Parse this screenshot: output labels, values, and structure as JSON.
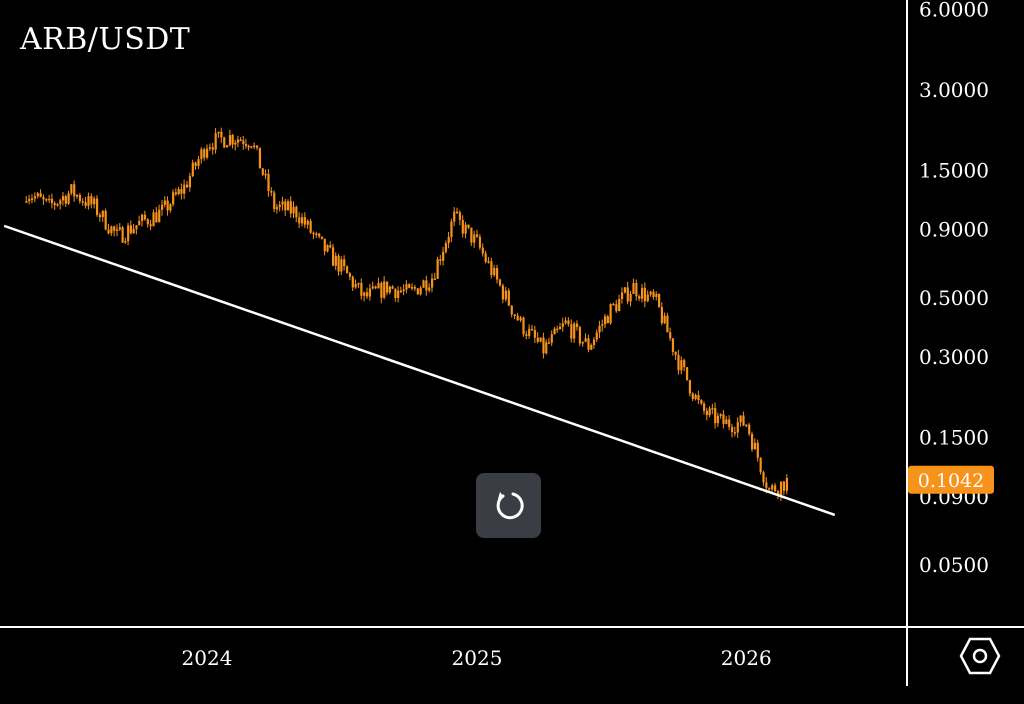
{
  "header": {
    "pair": "ARB/USDT"
  },
  "price_tag": {
    "value": "0.1042",
    "color": "#f7931a"
  },
  "controls": {
    "reset_icon": "reset-icon",
    "settings_icon": "settings-hexagon-icon"
  },
  "colors": {
    "candle": "#f7931a",
    "background": "#000000",
    "trendline": "#ffffff",
    "axis_text": "#ffffff"
  },
  "chart_data": {
    "type": "line",
    "title": "ARB/USDT",
    "y_scale": "log",
    "y_ticks": [
      "6.0000",
      "3.0000",
      "1.5000",
      "0.9000",
      "0.5000",
      "0.3000",
      "0.1500",
      "0.0900",
      "0.0500"
    ],
    "x_ticks": [
      "2024",
      "2025",
      "2026"
    ],
    "grid": false,
    "series": [
      {
        "x": [
          "2023-05-01",
          "2023-06-01",
          "2023-07-01",
          "2023-08-01",
          "2023-09-01",
          "2023-10-01",
          "2023-11-01",
          "2023-12-01",
          "2024-01-01",
          "2024-02-01",
          "2024-03-01",
          "2024-04-01",
          "2024-05-01",
          "2024-06-01",
          "2024-07-01",
          "2024-08-01",
          "2024-09-01",
          "2024-10-01",
          "2024-11-01",
          "2024-12-01",
          "2025-01-01",
          "2025-02-01",
          "2025-03-01",
          "2025-04-01",
          "2025-05-01",
          "2025-06-01",
          "2025-07-01",
          "2025-08-01",
          "2025-09-01",
          "2025-10-01",
          "2025-11-01",
          "2025-12-01",
          "2026-01-01",
          "2026-02-01",
          "2026-03-01"
        ],
        "y": [
          1.25,
          1.1,
          1.25,
          1.1,
          0.85,
          0.95,
          1.05,
          1.3,
          1.9,
          2.0,
          1.95,
          1.1,
          1.05,
          0.8,
          0.65,
          0.5,
          0.55,
          0.52,
          0.6,
          1.0,
          0.8,
          0.55,
          0.4,
          0.32,
          0.4,
          0.33,
          0.45,
          0.55,
          0.48,
          0.29,
          0.19,
          0.17,
          0.17,
          0.095,
          0.1042
        ]
      }
    ],
    "annotations": [
      {
        "type": "trendline",
        "from": {
          "x": "2023-04-01",
          "y": 0.93
        },
        "to": {
          "x": "2026-05-01",
          "y": 0.077
        }
      }
    ]
  }
}
